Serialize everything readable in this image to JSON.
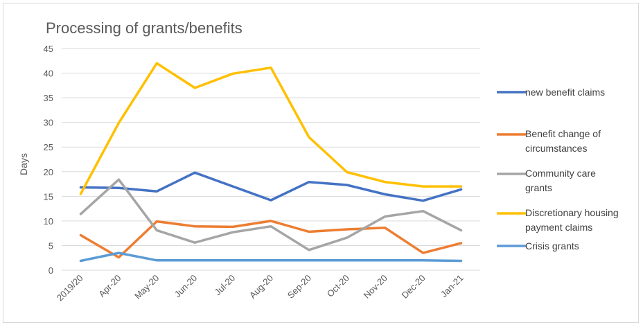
{
  "chart_data": {
    "type": "line",
    "title": "Processing of grants/benefits",
    "ylabel": "Days",
    "xlabel": "",
    "ylim": [
      0,
      45
    ],
    "yticks": [
      0,
      5,
      10,
      15,
      20,
      25,
      30,
      35,
      40,
      45
    ],
    "grid": true,
    "legend_position": "right",
    "categories": [
      "2019/20",
      "Apr-20",
      "May-20",
      "Jun-20",
      "Jul-20",
      "Aug-20",
      "Sep-20",
      "Oct-20",
      "Nov-20",
      "Dec-20",
      "Jan-21"
    ],
    "series": [
      {
        "name": "new benefit claims",
        "legend_lines": [
          "new benefit claims"
        ],
        "color": "#4472c4",
        "values": [
          16.8,
          16.7,
          16.0,
          19.8,
          17.0,
          14.2,
          17.9,
          17.3,
          15.4,
          14.1,
          16.4
        ]
      },
      {
        "name": "Benefit change of circumstances",
        "legend_lines": [
          "Benefit change of",
          "circumstances"
        ],
        "color": "#ed7d31",
        "values": [
          7.1,
          2.6,
          9.9,
          8.9,
          8.8,
          10.0,
          7.8,
          8.3,
          8.6,
          3.5,
          5.5
        ]
      },
      {
        "name": "Community care grants",
        "legend_lines": [
          "Community care",
          "grants"
        ],
        "color": "#a5a5a5",
        "values": [
          11.4,
          18.4,
          8.1,
          5.6,
          7.7,
          8.9,
          4.1,
          6.6,
          10.9,
          12.0,
          8.1
        ]
      },
      {
        "name": "Discretionary housing payment claims",
        "legend_lines": [
          "Discretionary housing",
          "payment claims"
        ],
        "color": "#ffc000",
        "values": [
          15.5,
          29.9,
          42.0,
          37.0,
          39.9,
          41.1,
          27.0,
          19.9,
          17.9,
          17.0,
          17.0
        ]
      },
      {
        "name": "Crisis grants",
        "legend_lines": [
          "Crisis grants"
        ],
        "color": "#5b9bd5",
        "values": [
          1.9,
          3.5,
          2.0,
          2.0,
          2.0,
          2.0,
          2.0,
          2.0,
          2.0,
          2.0,
          1.9
        ]
      }
    ]
  }
}
